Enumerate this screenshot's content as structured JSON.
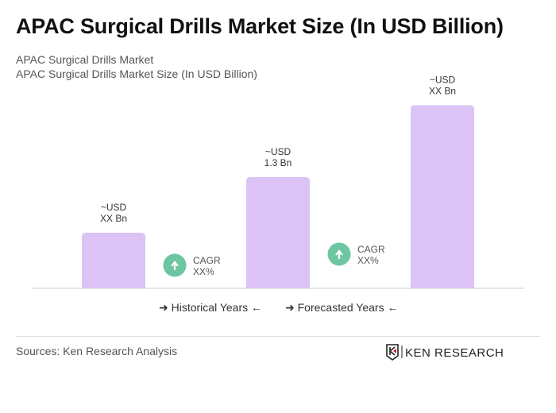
{
  "header": {
    "title": "APAC Surgical Drills Market Size (In USD Billion)",
    "subtitle1": "APAC Surgical Drills Market",
    "subtitle2": "APAC Surgical Drills Market Size (In USD Billion)"
  },
  "chart_data": {
    "type": "bar",
    "categories": [
      "",
      "",
      ""
    ],
    "values": [
      0.65,
      1.3,
      2.14
    ],
    "data_labels": [
      [
        "~USD",
        "XX Bn"
      ],
      [
        "~USD",
        "1.3 Bn"
      ],
      [
        "~USD",
        "XX Bn"
      ]
    ],
    "ylim": [
      0,
      2.3
    ],
    "grid": false,
    "bar_color": "#dcc3f6",
    "cagr": [
      {
        "label": "CAGR",
        "value": "XX%"
      },
      {
        "label": "CAGR",
        "value": "XX%"
      }
    ],
    "cagr_color": "#6dc6a1",
    "legend": {
      "historical": "Historical Years",
      "forecasted": "Forecasted Years"
    }
  },
  "footer": {
    "sources": "Sources: Ken Research Analysis",
    "logo_text": "KEN RESEARCH"
  }
}
